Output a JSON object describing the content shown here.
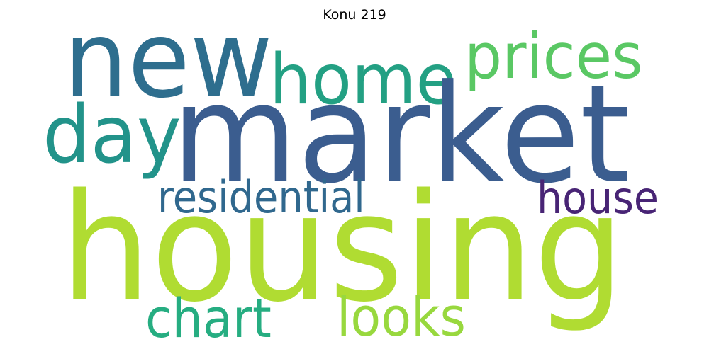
{
  "title": "Konu 219",
  "words": [
    {
      "key": "market",
      "text": "market",
      "color": "#3b5d8f"
    },
    {
      "key": "housing",
      "text": "housing",
      "color": "#b0dc32"
    },
    {
      "key": "new",
      "text": "new",
      "color": "#2e6e8e"
    },
    {
      "key": "home",
      "text": "home",
      "color": "#23a083"
    },
    {
      "key": "prices",
      "text": "prices",
      "color": "#5ac864"
    },
    {
      "key": "day",
      "text": "day",
      "color": "#22938a"
    },
    {
      "key": "residential",
      "text": "residential",
      "color": "#30688e"
    },
    {
      "key": "house",
      "text": "house",
      "color": "#482475"
    },
    {
      "key": "chart",
      "text": "chart",
      "color": "#26ad81"
    },
    {
      "key": "looks",
      "text": "looks",
      "color": "#98d83e"
    }
  ]
}
